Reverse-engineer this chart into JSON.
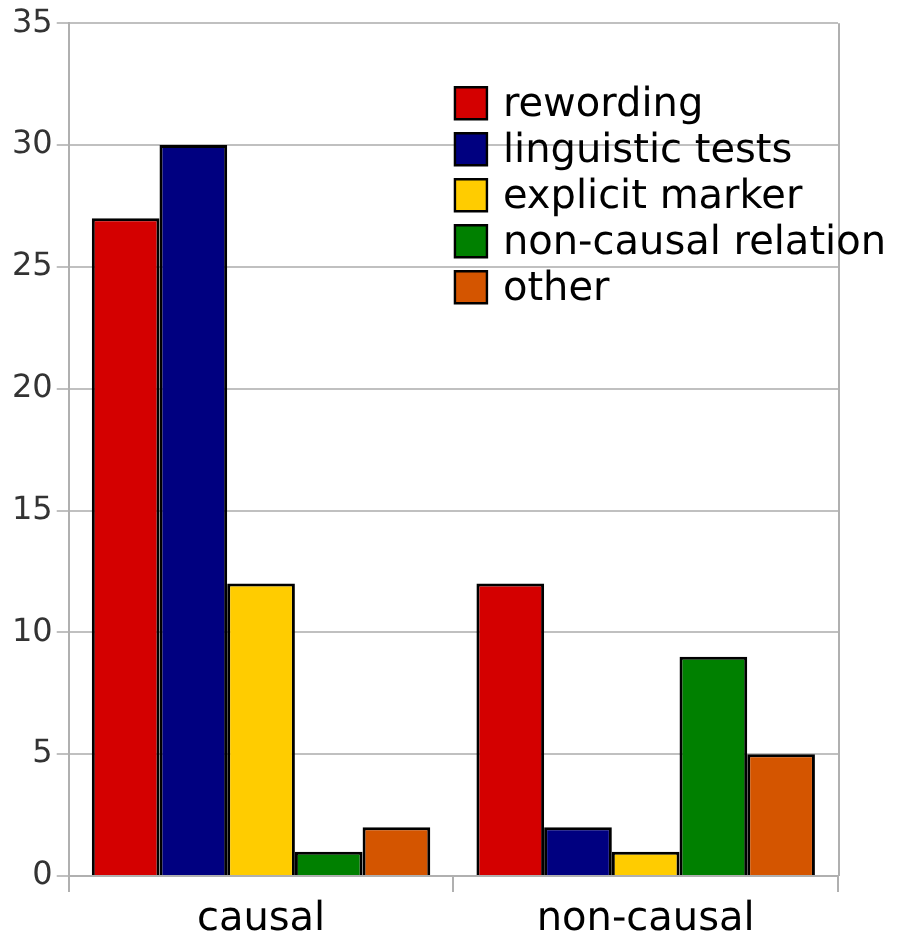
{
  "chart_data": {
    "type": "bar",
    "categories": [
      "causal",
      "non-causal"
    ],
    "series": [
      {
        "name": "rewording",
        "color": "#d40000",
        "values": [
          27,
          12
        ]
      },
      {
        "name": "linguistic tests",
        "color": "#000080",
        "values": [
          30,
          2
        ]
      },
      {
        "name": "explicit marker",
        "color": "#ffcc00",
        "values": [
          12,
          1
        ]
      },
      {
        "name": "non-causal relation",
        "color": "#008000",
        "values": [
          1,
          9
        ]
      },
      {
        "name": "other",
        "color": "#d45500",
        "values": [
          2,
          5
        ]
      }
    ],
    "ylim": [
      0,
      35
    ],
    "yticks": [
      0,
      5,
      10,
      15,
      20,
      25,
      30,
      35
    ],
    "grid": "y",
    "legend": "top right"
  }
}
